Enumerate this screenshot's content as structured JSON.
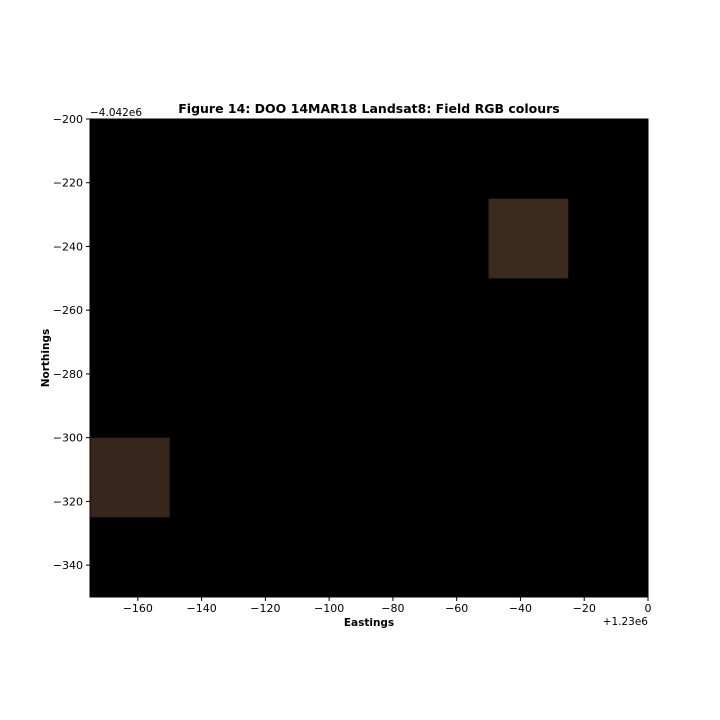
{
  "chart_data": {
    "type": "heatmap",
    "title": "Figure 14: DOO 14MAR18  Landsat8: Field RGB colours",
    "xlabel": "Eastings",
    "ylabel": "Northings",
    "x_offset_label": "+1.23e6",
    "y_offset_label": "−4.042e6",
    "xlim": [
      -175,
      0
    ],
    "ylim": [
      -350,
      -200
    ],
    "x_ticks": [
      -160,
      -140,
      -120,
      -100,
      -80,
      -60,
      -40,
      -20,
      0
    ],
    "y_ticks": [
      -200,
      -220,
      -240,
      -260,
      -280,
      -300,
      -320,
      -340
    ],
    "x_tick_labels": [
      "−160",
      "−140",
      "−120",
      "−100",
      "−80",
      "−60",
      "−40",
      "−20",
      "0"
    ],
    "y_tick_labels": [
      "−200",
      "−220",
      "−240",
      "−260",
      "−280",
      "−300",
      "−320",
      "−340"
    ],
    "background_color": "#000000",
    "grid": false,
    "cells": [
      {
        "x0": -50,
        "x1": -25,
        "y0": -250,
        "y1": -225,
        "color": "#3c2a1e"
      },
      {
        "x0": -175,
        "x1": -150,
        "y0": -325,
        "y1": -300,
        "color": "#37261b"
      }
    ]
  }
}
